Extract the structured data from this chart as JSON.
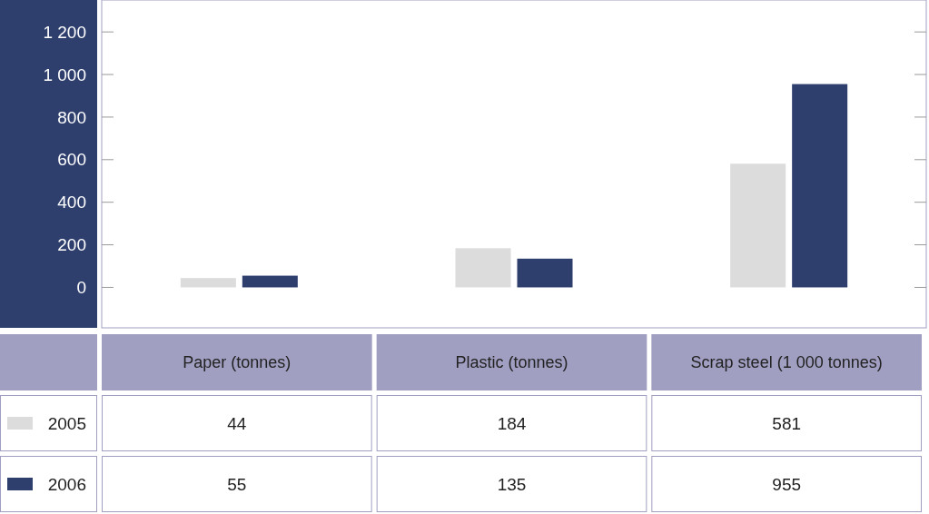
{
  "chart_data": {
    "type": "bar",
    "categories": [
      "Paper (tonnes)",
      "Plastic (tonnes)",
      "Scrap steel (1 000 tonnes)"
    ],
    "series": [
      {
        "name": "2005",
        "color": "#dcdcdc",
        "values": [
          44,
          184,
          581
        ]
      },
      {
        "name": "2006",
        "color": "#2e3f6e",
        "values": [
          55,
          135,
          955
        ]
      }
    ],
    "ylim": [
      -190,
      1350
    ],
    "yticks": [
      {
        "value": 0,
        "label": "0"
      },
      {
        "value": 200,
        "label": "200"
      },
      {
        "value": 400,
        "label": "400"
      },
      {
        "value": 600,
        "label": "600"
      },
      {
        "value": 800,
        "label": "800"
      },
      {
        "value": 1000,
        "label": "1 000"
      },
      {
        "value": 1200,
        "label": "1 200"
      }
    ],
    "data_labels": true,
    "legend": "bottom",
    "grid": false
  }
}
